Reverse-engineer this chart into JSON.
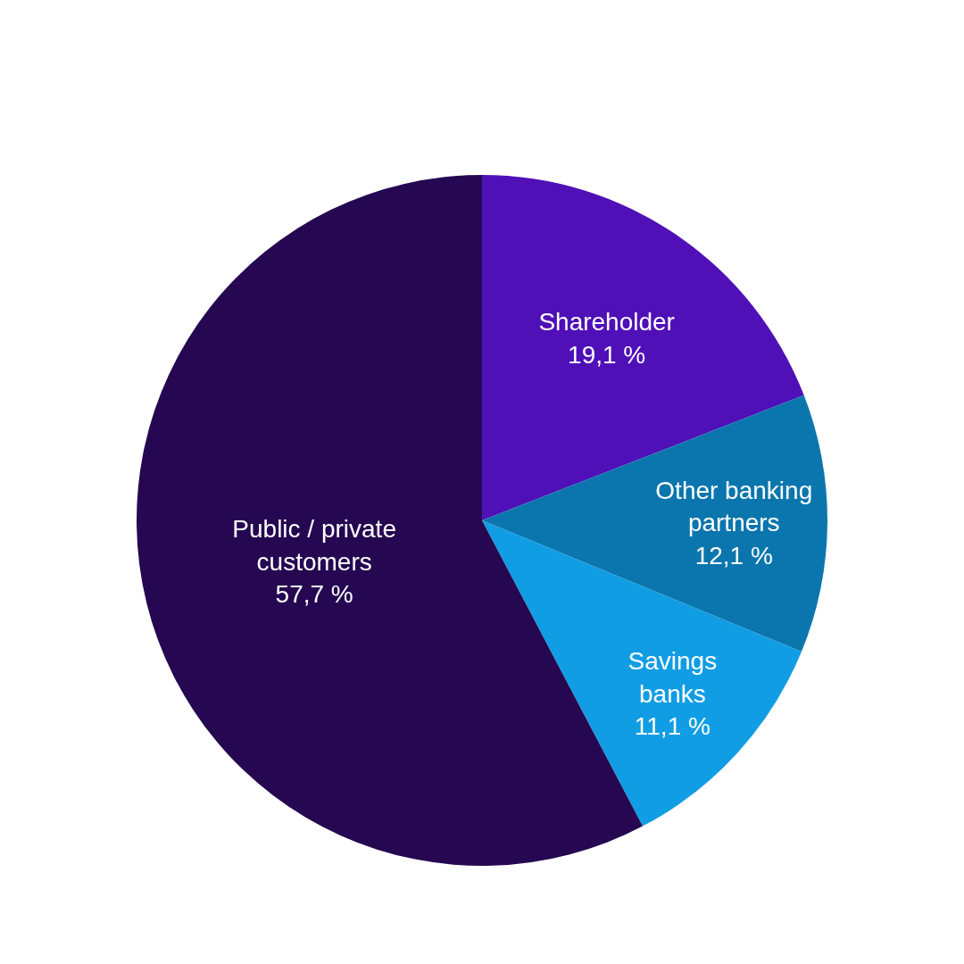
{
  "chart_data": {
    "type": "pie",
    "categories": [
      "Shareholder",
      "Other banking\npartners",
      "Savings\nbanks",
      "Public / private\ncustomers"
    ],
    "values": [
      19.1,
      12.1,
      11.1,
      57.7
    ],
    "value_labels": [
      "19,1 %",
      "12,1 %",
      "11,1 %",
      "57,7 %"
    ],
    "colors": [
      "#5010b8",
      "#0b76ad",
      "#119de4",
      "#250851"
    ]
  }
}
